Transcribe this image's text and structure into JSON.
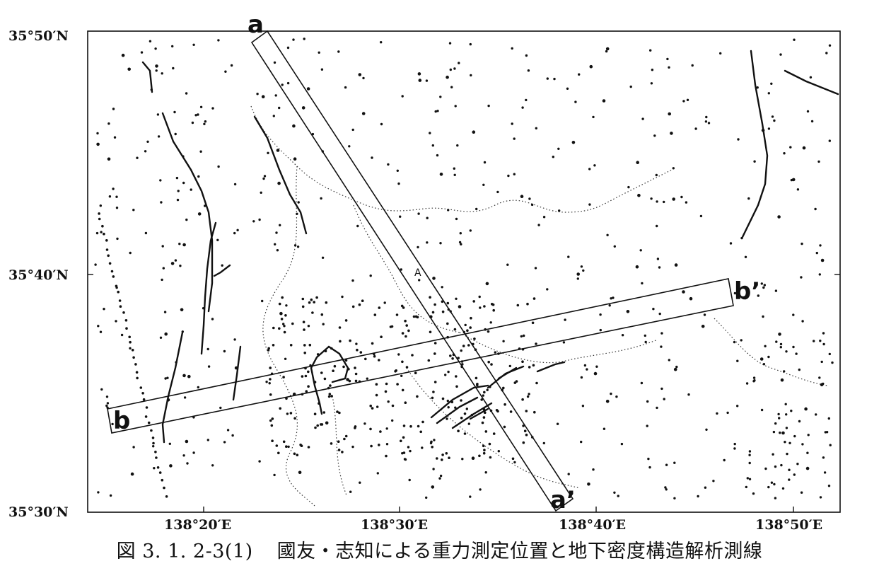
{
  "map": {
    "latitude_labels": [
      "35°50′N",
      "35°40′N",
      "35°30′N"
    ],
    "longitude_labels": [
      "138°20′E",
      "138°30′E",
      "138°40′E",
      "138°50′E"
    ],
    "profiles": [
      {
        "start": "a",
        "end": "a’"
      },
      {
        "start": "b",
        "end": "b’"
      }
    ],
    "station_label": "A",
    "legend": {
      "gravity_station": "dot",
      "fault": "solid line",
      "prefecture_boundary": "dotted line"
    }
  },
  "caption": {
    "figure_number": "図 3. 1. 2-3(1)",
    "text": "國友・志知による重力測定位置と地下密度構造解析測線"
  }
}
